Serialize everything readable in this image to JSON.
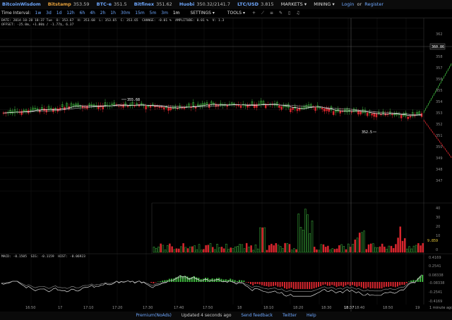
{
  "topbar": {
    "logo": "BitcoinWisdom",
    "exchanges": [
      {
        "name": "Bitstamp",
        "value": "353.59",
        "color": "orange"
      },
      {
        "name": "BTC-e",
        "value": "351.5",
        "color": "blue"
      },
      {
        "name": "Bitfinex",
        "value": "351.62",
        "color": "blue"
      },
      {
        "name": "Huobi",
        "value": "350.32/2141.7",
        "color": "blue"
      },
      {
        "name": "LTC/USD",
        "value": "3.815",
        "color": "blue"
      }
    ],
    "markets_label": "MARKETS",
    "mining_label": "MINING",
    "login_label": "Login",
    "or_label": "or",
    "register_label": "Register"
  },
  "toolbar": {
    "interval_label": "Time Interval:",
    "intervals": [
      "1w",
      "3d",
      "1d",
      "12h",
      "6h",
      "4h",
      "2h",
      "1h",
      "30m",
      "15m",
      "5m",
      "3m",
      "1m"
    ],
    "active_interval": "1m",
    "settings_label": "SETTINGS",
    "tools_label": "TOOLS",
    "icons": [
      "plus-icon",
      "diagonal-line-icon",
      "horizontal-lines-icon",
      "pencil-icon",
      "trash-icon",
      "bell-icon"
    ]
  },
  "info": {
    "line1": "DATE: 2014-10-28 18:37 Tue  O: 353.67  H: 353.68  L: 353.65  C: 353.65  CHANGE: -0.01 %  AMPLITUDE: 0.01 %  V: 1.3",
    "line2": "OFFSET: -25.0m, +1.80$ / -1.77$, 6.37"
  },
  "macd": {
    "text": "MACD: -0.1505  SIG: -0.1159  HIST: -0.06923"
  },
  "annotations": {
    "high": "355.68",
    "low": "352.5",
    "current_price": "360.86",
    "current_volume": "9.859"
  },
  "price_axis": [
    "362",
    "358",
    "357",
    "356",
    "355",
    "354",
    "353",
    "352",
    "351",
    "350",
    "349",
    "348",
    "347"
  ],
  "volume_axis": [
    "40",
    "30",
    "20",
    "10",
    "0"
  ],
  "macd_axis": [
    "0.4169",
    "0.2541",
    "0.08338",
    "-0.08338",
    "-0.2541",
    "-0.4169"
  ],
  "time_axis": [
    "16:50",
    "17",
    "17:10",
    "17:20",
    "17:30",
    "17:40",
    "17:50",
    "18",
    "18:10",
    "18:20",
    "18:30",
    "18:37",
    "18:40",
    "18:50",
    "19",
    "1 minute ago"
  ],
  "footer": {
    "premium": "Premium(NoAds)",
    "updated": "Updated 4 seconds ago",
    "feedback": "Send feedback",
    "twitter": "Twitter",
    "help": "Help"
  },
  "colors": {
    "up": "#3fb93f",
    "down": "#d8262e",
    "link": "#6fa8ff",
    "accent": "#e8a23c"
  }
}
